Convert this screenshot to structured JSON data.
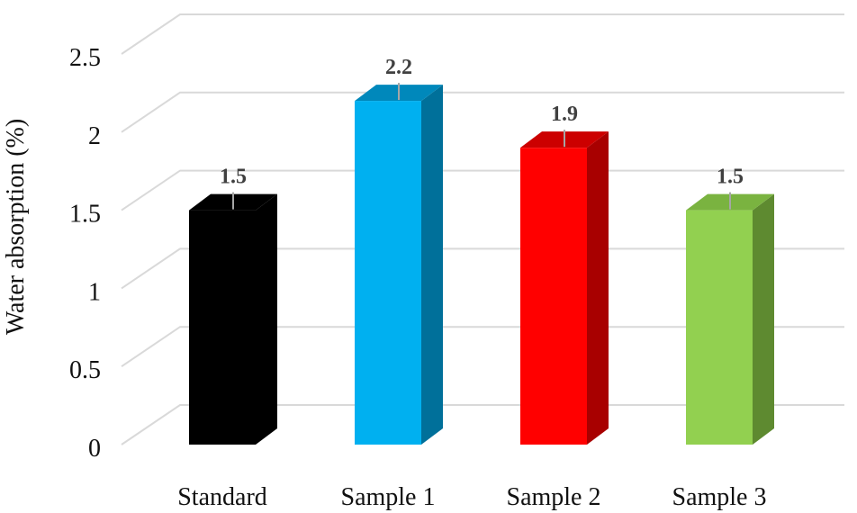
{
  "chart_data": {
    "type": "bar",
    "style": "3d-column",
    "title": "",
    "xlabel": "",
    "ylabel": "Water absorption (%)",
    "ylim": [
      0,
      2.5
    ],
    "yticks": [
      "0",
      "0.5",
      "1",
      "1.5",
      "2",
      "2.5"
    ],
    "grid": true,
    "legend": "none",
    "categories": [
      "Standard",
      "Sample 1",
      "Sample 2",
      "Sample 3"
    ],
    "values": [
      1.5,
      2.2,
      1.9,
      1.5
    ],
    "value_labels": [
      "1.5",
      "2.2",
      "1.9",
      "1.5"
    ],
    "error_bars": true,
    "colors": [
      {
        "front": "#000000",
        "side": "#000000",
        "top": "#000000"
      },
      {
        "front": "#00b0f0",
        "side": "#00709a",
        "top": "#0088bb"
      },
      {
        "front": "#ff0000",
        "side": "#a80000",
        "top": "#cc0000"
      },
      {
        "front": "#92d050",
        "side": "#5e8a30",
        "top": "#7ab340"
      }
    ]
  }
}
